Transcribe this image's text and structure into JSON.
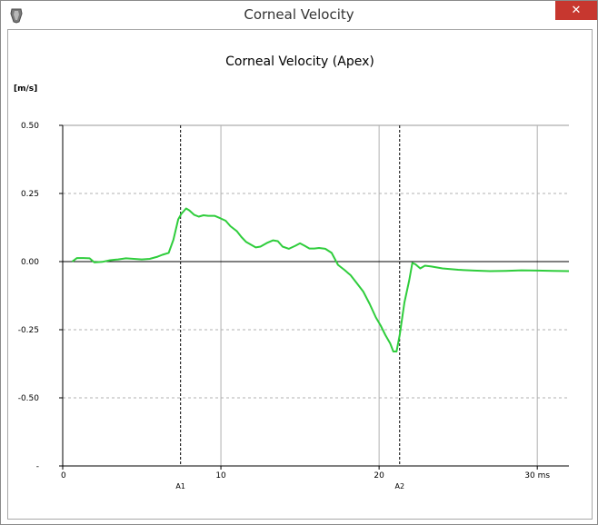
{
  "window": {
    "title": "Corneal Velocity",
    "close_glyph": "✕",
    "app_icon": "eye-app-icon",
    "close_color": "#c7372f"
  },
  "chart_data": {
    "type": "line",
    "title": "Corneal Velocity (Apex)",
    "ylabel": "[m/s]",
    "xlabel": "",
    "x_tick_labels": [
      "0",
      "10",
      "20",
      "30 ms"
    ],
    "x_ticks": [
      0,
      10,
      20,
      30
    ],
    "y_tick_labels": [
      "0.50",
      "0.25",
      "0.00",
      "-0.25",
      "-0.50",
      "-"
    ],
    "y_ticks": [
      0.5,
      0.25,
      0.0,
      -0.25,
      -0.5,
      -0.75
    ],
    "xlim": [
      0,
      32
    ],
    "ylim": [
      -0.75,
      0.5
    ],
    "grid": true,
    "line_color": "#2fcd3c",
    "markers": [
      {
        "name": "A1",
        "x": 7.45
      },
      {
        "name": "A2",
        "x": 21.3
      }
    ],
    "series": [
      {
        "x": [
          0.6,
          0.9,
          1.3,
          1.7,
          2.0,
          2.5,
          3.0,
          3.5,
          4.0,
          4.5,
          5.0,
          5.5,
          6.0,
          6.3,
          6.7,
          7.0,
          7.3,
          7.5,
          7.8,
          8.0,
          8.3,
          8.6,
          8.9,
          9.2,
          9.6,
          10.0,
          10.3,
          10.6,
          11.0,
          11.3,
          11.6,
          11.9,
          12.2,
          12.5,
          12.9,
          13.3,
          13.6,
          13.9,
          14.3,
          14.7,
          15.0,
          15.3,
          15.6,
          15.9,
          16.2,
          16.6,
          17.0,
          17.4,
          17.8,
          18.2,
          18.6,
          19.0,
          19.4,
          19.8,
          20.1,
          20.4,
          20.7,
          20.9,
          21.1,
          21.3,
          21.6,
          21.9,
          22.1,
          22.3,
          22.6,
          22.9,
          23.3,
          24.0,
          25.0,
          26.0,
          27.0,
          28.0,
          29.0,
          30.0,
          31.0,
          32.0
        ],
        "values": [
          0.0,
          0.013,
          0.013,
          0.012,
          -0.003,
          -0.001,
          0.005,
          0.008,
          0.012,
          0.01,
          0.008,
          0.01,
          0.018,
          0.025,
          0.032,
          0.08,
          0.155,
          0.175,
          0.195,
          0.188,
          0.172,
          0.165,
          0.17,
          0.168,
          0.168,
          0.158,
          0.15,
          0.13,
          0.112,
          0.09,
          0.072,
          0.062,
          0.052,
          0.055,
          0.068,
          0.078,
          0.075,
          0.055,
          0.047,
          0.058,
          0.067,
          0.058,
          0.048,
          0.048,
          0.05,
          0.047,
          0.032,
          -0.012,
          -0.03,
          -0.05,
          -0.08,
          -0.11,
          -0.155,
          -0.205,
          -0.235,
          -0.27,
          -0.3,
          -0.33,
          -0.33,
          -0.27,
          -0.15,
          -0.07,
          -0.005,
          -0.01,
          -0.025,
          -0.015,
          -0.018,
          -0.025,
          -0.03,
          -0.033,
          -0.035,
          -0.034,
          -0.032,
          -0.033,
          -0.034,
          -0.035
        ]
      }
    ]
  }
}
